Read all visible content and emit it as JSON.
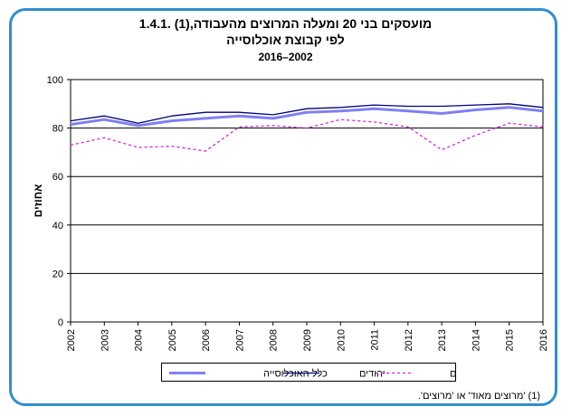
{
  "title_line1": "1.4.1. מועסקים בני 20 ומעלה המרוצים מהעבודה,(1)",
  "title_line2": "לפי קבוצת אוכלוסייה",
  "title_line3": "2016–2002",
  "footnote": "(1) 'מרוצים מאוד' או 'מרוצים'.",
  "colors": {
    "frame": "#2e8fd0",
    "total": "#8080f0",
    "jews": "#000080",
    "arabs": "#e020e0"
  },
  "chart_data": {
    "type": "line",
    "x": [
      "2002",
      "2003",
      "2004",
      "2005",
      "2006",
      "2007",
      "2008",
      "2009",
      "2010",
      "2011",
      "2012",
      "2013",
      "2014",
      "2015",
      "2016"
    ],
    "ylabel": "אחוזים",
    "xlabel": "",
    "ylim": [
      0,
      100
    ],
    "yticks": [
      0,
      20,
      40,
      60,
      80,
      100
    ],
    "grid": true,
    "legend_position": "bottom",
    "series": [
      {
        "name": "כלל האוכלוסייה",
        "color": "#8080f0",
        "style": "solid-thick",
        "values": [
          81.5,
          83.5,
          81.0,
          83.0,
          84.0,
          85.0,
          84.0,
          86.5,
          87.0,
          88.0,
          87.0,
          86.0,
          87.5,
          88.5,
          87.0
        ]
      },
      {
        "name": "יהודים",
        "color": "#000080",
        "style": "solid-thin",
        "values": [
          83.0,
          85.0,
          82.0,
          85.0,
          86.5,
          86.5,
          85.5,
          88.0,
          88.5,
          89.5,
          89.0,
          89.0,
          89.5,
          90.0,
          88.5
        ]
      },
      {
        "name": "ערבים",
        "color": "#e020e0",
        "style": "dotted",
        "values": [
          73.0,
          76.0,
          72.0,
          72.5,
          70.5,
          80.5,
          81.0,
          80.0,
          83.5,
          82.5,
          80.5,
          71.0,
          77.0,
          82.0,
          80.5
        ]
      }
    ]
  }
}
